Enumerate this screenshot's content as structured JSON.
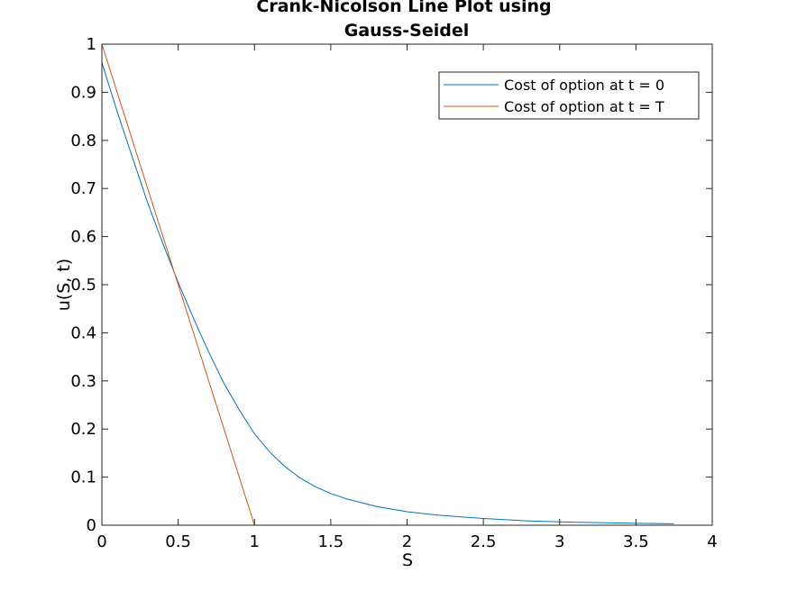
{
  "chart_data": {
    "type": "line",
    "title_lines": [
      "Crank-Nicolson Line Plot using",
      "Gauss-Seidel"
    ],
    "xlabel": "S",
    "ylabel": "u(S, t)",
    "xlim": [
      0,
      4
    ],
    "ylim": [
      0,
      1
    ],
    "xticks": [
      0,
      0.5,
      1,
      1.5,
      2,
      2.5,
      3,
      3.5,
      4
    ],
    "xtick_labels": [
      "0",
      "0.5",
      "1",
      "1.5",
      "2",
      "2.5",
      "3",
      "3.5",
      "4"
    ],
    "yticks": [
      0,
      0.1,
      0.2,
      0.3,
      0.4,
      0.5,
      0.6,
      0.7,
      0.8,
      0.9,
      1
    ],
    "ytick_labels": [
      "0",
      "0.1",
      "0.2",
      "0.3",
      "0.4",
      "0.5",
      "0.6",
      "0.7",
      "0.8",
      "0.9",
      "1"
    ],
    "grid": false,
    "legend_position": "top-right",
    "series": [
      {
        "name": "Cost of option at t = 0",
        "color": "#0072BD",
        "x": [
          0,
          0.1,
          0.2,
          0.3,
          0.4,
          0.5,
          0.6,
          0.7,
          0.8,
          0.9,
          1.0,
          1.1,
          1.2,
          1.3,
          1.4,
          1.5,
          1.6,
          1.8,
          2.0,
          2.2,
          2.5,
          2.8,
          3.0,
          3.3,
          3.5,
          3.75
        ],
        "y": [
          0.962,
          0.86,
          0.765,
          0.67,
          0.585,
          0.505,
          0.43,
          0.36,
          0.295,
          0.24,
          0.19,
          0.152,
          0.122,
          0.098,
          0.08,
          0.066,
          0.055,
          0.039,
          0.028,
          0.021,
          0.014,
          0.009,
          0.007,
          0.005,
          0.004,
          0.003
        ]
      },
      {
        "name": "Cost of option at t = T",
        "color": "#D95319",
        "x": [
          0,
          1,
          3.75
        ],
        "y": [
          1,
          0,
          0
        ]
      }
    ]
  }
}
